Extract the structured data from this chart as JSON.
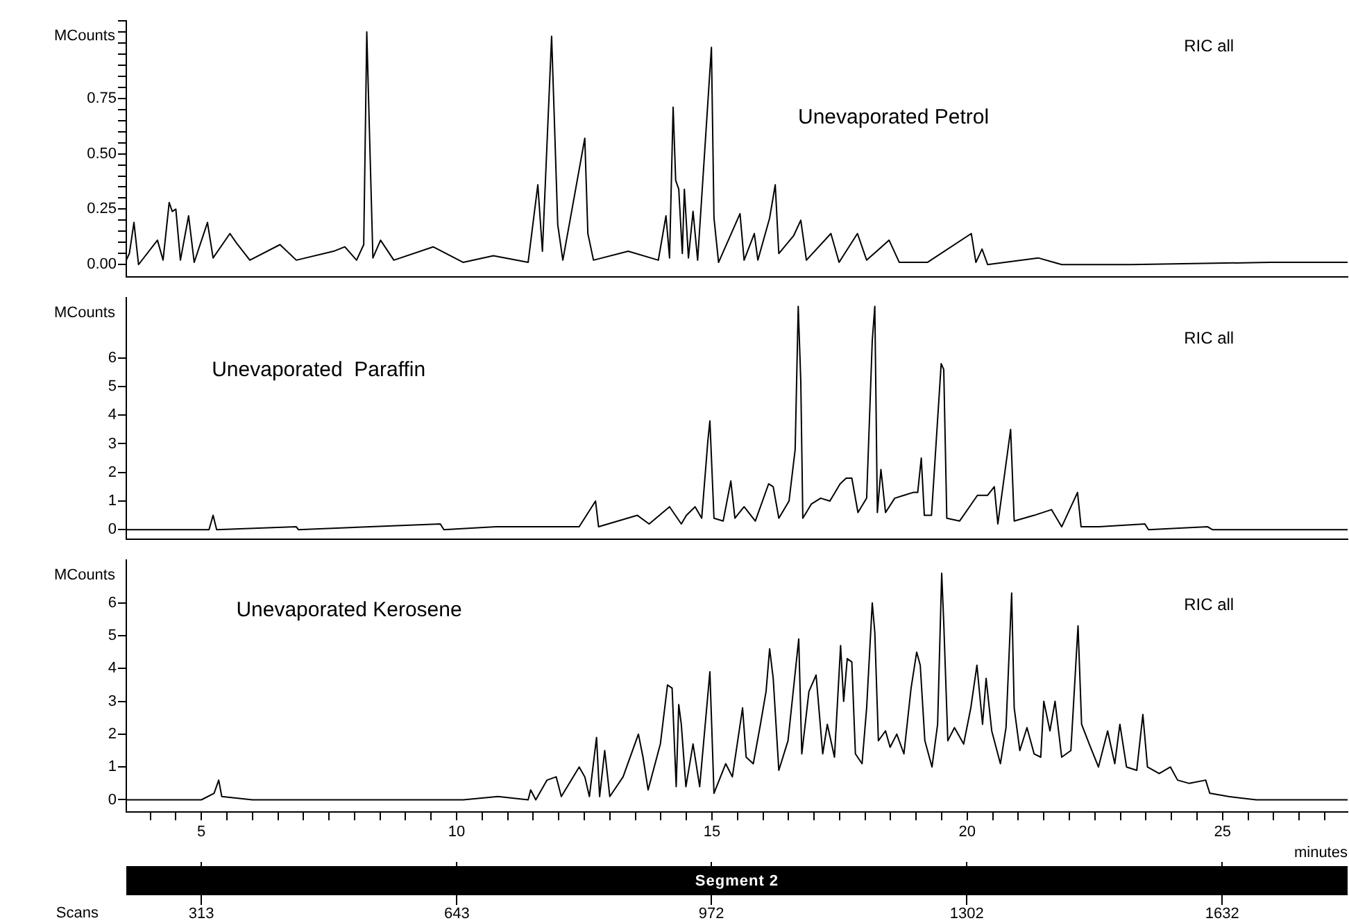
{
  "chart_data": [
    {
      "type": "line",
      "title": "Unevaporated Petrol",
      "ylabel": "MCounts",
      "annotations": [
        "RIC all"
      ],
      "tick_labels": "y",
      "color": "#000000",
      "xlim": [
        3.53,
        27.45
      ],
      "ylim": [
        -0.055,
        1.1
      ],
      "yticks": [
        {
          "value": 0,
          "label": "0.00"
        },
        {
          "value": 0.05,
          "label": null
        },
        {
          "value": 0.1,
          "label": null
        },
        {
          "value": 0.15,
          "label": null
        },
        {
          "value": 0.2,
          "label": null
        },
        0.25,
        {
          "value": 0.3,
          "label": null
        },
        {
          "value": 0.35,
          "label": null
        },
        {
          "value": 0.4,
          "label": null
        },
        {
          "value": 0.45,
          "label": null
        },
        {
          "value": 0.5,
          "label": "0.50"
        },
        {
          "value": 0.55,
          "label": null
        },
        {
          "value": 0.6,
          "label": null
        },
        {
          "value": 0.65,
          "label": null
        },
        {
          "value": 0.7,
          "label": null
        },
        0.75,
        {
          "value": 0.8,
          "label": null
        },
        {
          "value": 0.85,
          "label": null
        },
        {
          "value": 0.9,
          "label": null
        },
        {
          "value": 0.95,
          "label": null
        },
        {
          "value": 1,
          "label": null
        },
        {
          "value": 1.05,
          "label": null
        },
        {
          "value": 1.1,
          "label": null
        }
      ],
      "x": [
        3.53,
        3.59,
        3.68,
        3.77,
        4.14,
        4.25,
        4.37,
        4.43,
        4.5,
        4.59,
        4.75,
        4.86,
        5.12,
        5.23,
        5.56,
        5.68,
        5.95,
        6.54,
        6.86,
        7.59,
        7.81,
        8.04,
        8.18,
        8.24,
        8.29,
        8.36,
        8.51,
        8.77,
        9.54,
        10.13,
        10.72,
        11.4,
        11.59,
        11.68,
        11.86,
        11.91,
        11.98,
        12.08,
        12.51,
        12.57,
        12.68,
        13.36,
        13.95,
        14.1,
        14.17,
        14.24,
        14.29,
        14.35,
        14.42,
        14.46,
        14.54,
        14.63,
        14.72,
        14.99,
        15.04,
        15.13,
        15.55,
        15.63,
        15.83,
        15.9,
        16.13,
        16.24,
        16.31,
        16.6,
        16.74,
        16.85,
        17.33,
        17.49,
        17.85,
        18.03,
        18.47,
        18.67,
        19.22,
        20.08,
        20.17,
        20.29,
        20.4,
        21.39,
        21.85,
        23.21,
        25.93,
        27.45
      ],
      "values": [
        0.02,
        0.05,
        0.19,
        0,
        0.11,
        0.02,
        0.28,
        0.24,
        0.25,
        0.02,
        0.22,
        0.01,
        0.19,
        0.03,
        0.14,
        0.1,
        0.02,
        0.09,
        0.02,
        0.06,
        0.08,
        0.02,
        0.09,
        1.05,
        0.62,
        0.03,
        0.11,
        0.02,
        0.08,
        0.01,
        0.04,
        0.01,
        0.36,
        0.06,
        1.03,
        0.68,
        0.18,
        0.02,
        0.57,
        0.14,
        0.02,
        0.06,
        0.02,
        0.22,
        0.03,
        0.71,
        0.38,
        0.34,
        0.05,
        0.34,
        0.03,
        0.24,
        0.02,
        0.98,
        0.21,
        0.01,
        0.23,
        0.02,
        0.14,
        0.02,
        0.21,
        0.36,
        0.05,
        0.13,
        0.2,
        0.02,
        0.14,
        0.01,
        0.14,
        0.02,
        0.11,
        0.01,
        0.01,
        0.14,
        0.01,
        0.07,
        0,
        0.03,
        0,
        0,
        0.01,
        0.01
      ]
    },
    {
      "type": "line",
      "title": "Unevaporated  Paraffin",
      "ylabel": "MCounts",
      "annotations": [
        "RIC all"
      ],
      "tick_labels": "y",
      "color": "#000000",
      "xlim": [
        3.53,
        27.45
      ],
      "ylim": [
        -0.33,
        8.1
      ],
      "yticks": [
        0,
        1,
        2,
        3,
        4,
        5,
        6
      ],
      "x": [
        3.53,
        5.15,
        5.23,
        5.3,
        6.86,
        6.9,
        9.68,
        9.75,
        10.77,
        11.86,
        12.4,
        12.72,
        12.78,
        13.54,
        13.77,
        14.17,
        14.4,
        14.5,
        14.67,
        14.8,
        14.92,
        14.96,
        15.04,
        15.22,
        15.37,
        15.45,
        15.63,
        15.85,
        16.11,
        16.2,
        16.31,
        16.51,
        16.63,
        16.69,
        16.74,
        16.78,
        16.95,
        17.13,
        17.31,
        17.51,
        17.63,
        17.74,
        17.86,
        18.03,
        18.14,
        18.19,
        18.24,
        18.31,
        18.4,
        18.58,
        18.76,
        18.94,
        19.03,
        19.1,
        19.16,
        19.3,
        19.49,
        19.54,
        19.6,
        19.85,
        20.2,
        20.4,
        20.53,
        20.6,
        20.85,
        20.92,
        21.31,
        21.65,
        21.85,
        22.16,
        22.23,
        22.58,
        23.48,
        23.55,
        24.71,
        24.8,
        27.45
      ],
      "values": [
        0,
        0,
        0.5,
        0,
        0.1,
        0,
        0.2,
        0,
        0.1,
        0.1,
        0.1,
        1,
        0.1,
        0.5,
        0.2,
        0.8,
        0.2,
        0.5,
        0.8,
        0.4,
        3.1,
        3.8,
        0.4,
        0.3,
        1.7,
        0.4,
        0.8,
        0.3,
        1.6,
        1.5,
        0.4,
        1,
        2.8,
        7.8,
        5.2,
        0.4,
        0.9,
        1.1,
        1,
        1.6,
        1.8,
        1.8,
        0.6,
        1.1,
        6.6,
        7.8,
        0.6,
        2.1,
        0.6,
        1.1,
        1.2,
        1.3,
        1.3,
        2.5,
        0.5,
        0.5,
        5.8,
        5.6,
        0.4,
        0.3,
        1.2,
        1.2,
        1.5,
        0.2,
        3.5,
        0.3,
        0.5,
        0.7,
        0.1,
        1.3,
        0.1,
        0.1,
        0.2,
        0,
        0.1,
        0,
        0
      ]
    },
    {
      "type": "line",
      "title": "Unevaporated Kerosene",
      "ylabel": "MCounts",
      "annotations": [
        "RIC all",
        "Segment 2"
      ],
      "color": "#000000",
      "xlabel": "minutes",
      "x2label": "Scans",
      "xlim": [
        3.53,
        27.45
      ],
      "ylim": [
        -0.37,
        7.3
      ],
      "yticks": [
        0,
        1,
        2,
        3,
        4,
        5,
        6
      ],
      "xticks": [
        {
          "value": 4,
          "label": null
        },
        {
          "value": 4.5,
          "label": null
        },
        5,
        {
          "value": 5.5,
          "label": null
        },
        {
          "value": 6,
          "label": null
        },
        {
          "value": 6.5,
          "label": null
        },
        {
          "value": 7,
          "label": null
        },
        {
          "value": 7.5,
          "label": null
        },
        {
          "value": 8,
          "label": null
        },
        {
          "value": 8.5,
          "label": null
        },
        {
          "value": 9,
          "label": null
        },
        {
          "value": 9.5,
          "label": null
        },
        10,
        {
          "value": 10.5,
          "label": null
        },
        {
          "value": 11,
          "label": null
        },
        {
          "value": 11.5,
          "label": null
        },
        {
          "value": 12,
          "label": null
        },
        {
          "value": 12.5,
          "label": null
        },
        {
          "value": 13,
          "label": null
        },
        {
          "value": 13.5,
          "label": null
        },
        {
          "value": 14,
          "label": null
        },
        {
          "value": 14.5,
          "label": null
        },
        15,
        {
          "value": 15.5,
          "label": null
        },
        {
          "value": 16,
          "label": null
        },
        {
          "value": 16.5,
          "label": null
        },
        {
          "value": 17,
          "label": null
        },
        {
          "value": 17.5,
          "label": null
        },
        {
          "value": 18,
          "label": null
        },
        {
          "value": 18.5,
          "label": null
        },
        {
          "value": 19,
          "label": null
        },
        {
          "value": 19.5,
          "label": null
        },
        20,
        {
          "value": 20.5,
          "label": null
        },
        {
          "value": 21,
          "label": null
        },
        {
          "value": 21.5,
          "label": null
        },
        {
          "value": 22,
          "label": null
        },
        {
          "value": 22.5,
          "label": null
        },
        {
          "value": 23,
          "label": null
        },
        {
          "value": 23.5,
          "label": null
        },
        {
          "value": 24,
          "label": null
        },
        {
          "value": 24.5,
          "label": null
        },
        25,
        {
          "value": 25.5,
          "label": null
        },
        {
          "value": 26,
          "label": null
        },
        {
          "value": 26.5,
          "label": null
        },
        {
          "value": 27,
          "label": null
        }
      ],
      "x2lim": [
        216,
        1794
      ],
      "x2ticks": [
        313,
        643,
        972,
        1302,
        1632
      ],
      "x": [
        3.53,
        5,
        5.25,
        5.34,
        5.4,
        6,
        6.91,
        8.45,
        10.13,
        10.81,
        11.4,
        11.45,
        11.55,
        11.77,
        11.95,
        12.05,
        12.4,
        12.51,
        12.6,
        12.74,
        12.8,
        12.9,
        13,
        13.26,
        13.56,
        13.65,
        13.75,
        13.99,
        14.13,
        14.22,
        14.3,
        14.35,
        14.4,
        14.49,
        14.63,
        14.76,
        14.96,
        15.04,
        15.27,
        15.4,
        15.6,
        15.67,
        15.81,
        15.95,
        16.06,
        16.13,
        16.2,
        16.31,
        16.49,
        16.7,
        16.76,
        16.9,
        17.04,
        17.17,
        17.26,
        17.4,
        17.52,
        17.58,
        17.65,
        17.74,
        17.81,
        17.94,
        18.03,
        18.14,
        18.19,
        18.26,
        18.4,
        18.49,
        18.62,
        18.76,
        18.9,
        19.01,
        19.08,
        19.17,
        19.31,
        19.42,
        19.5,
        19.54,
        19.62,
        19.75,
        19.93,
        20.07,
        20.19,
        20.3,
        20.37,
        20.48,
        20.65,
        20.76,
        20.87,
        20.92,
        21.03,
        21.17,
        21.31,
        21.44,
        21.5,
        21.62,
        21.72,
        21.85,
        22.03,
        22.17,
        22.24,
        22.39,
        22.57,
        22.75,
        22.89,
        22.99,
        23.12,
        23.32,
        23.44,
        23.53,
        23.76,
        23.98,
        24.12,
        24.35,
        24.67,
        24.75,
        25.12,
        25.66,
        27.45
      ],
      "values": [
        0,
        0,
        0.2,
        0.6,
        0.1,
        0,
        0,
        0,
        0,
        0.1,
        0,
        0.3,
        0,
        0.6,
        0.7,
        0.1,
        1,
        0.7,
        0.1,
        1.9,
        0.1,
        1.5,
        0.1,
        0.7,
        2,
        1.3,
        0.3,
        1.7,
        3.5,
        3.4,
        0.4,
        2.9,
        2.3,
        0.4,
        1.7,
        0.4,
        3.9,
        0.2,
        1.1,
        0.7,
        2.8,
        1.3,
        1.1,
        2.3,
        3.3,
        4.6,
        3.7,
        0.9,
        1.8,
        4.9,
        1.4,
        3.3,
        3.8,
        1.4,
        2.3,
        1.3,
        4.7,
        3,
        4.3,
        4.2,
        1.4,
        1.1,
        2.8,
        6,
        5.1,
        1.8,
        2.1,
        1.6,
        2,
        1.4,
        3.4,
        4.5,
        4.1,
        1.8,
        1,
        2.3,
        6.9,
        5.4,
        1.8,
        2.2,
        1.7,
        2.8,
        4.1,
        2.3,
        3.7,
        2.1,
        1.1,
        2.2,
        6.3,
        2.8,
        1.5,
        2.2,
        1.4,
        1.3,
        3,
        2.1,
        3,
        1.3,
        1.5,
        5.3,
        2.3,
        1.7,
        1,
        2.1,
        1.1,
        2.3,
        1,
        0.9,
        2.6,
        1,
        0.8,
        1,
        0.6,
        0.5,
        0.6,
        0.2,
        0.1,
        0,
        0
      ]
    }
  ]
}
